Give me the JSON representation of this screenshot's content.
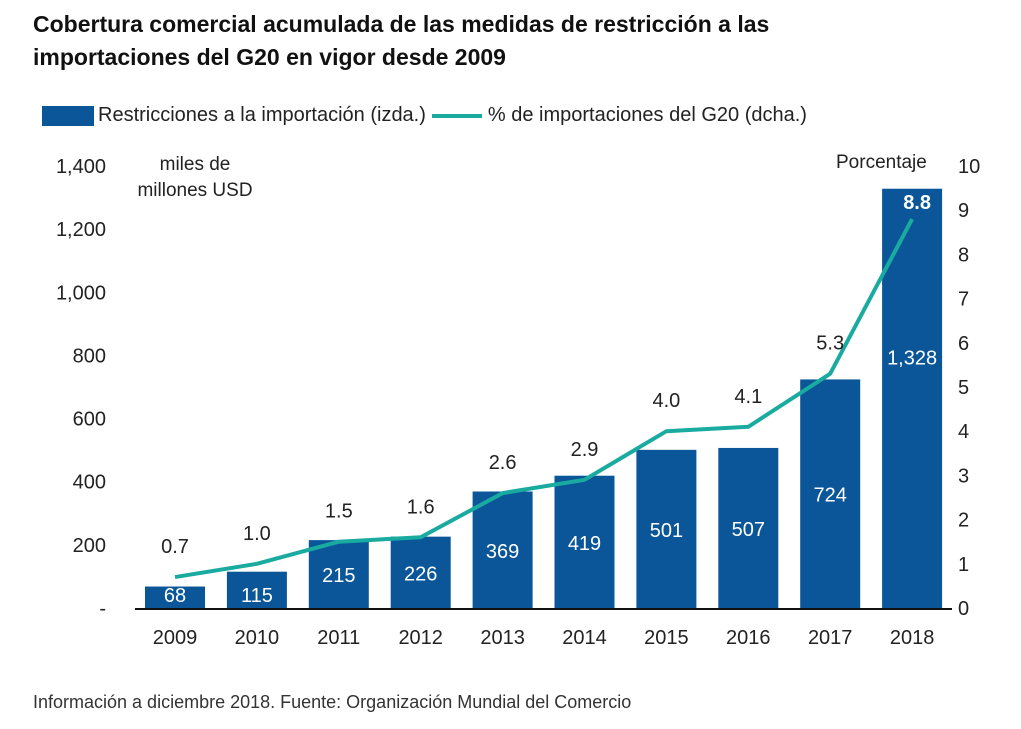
{
  "chart_data": {
    "type": "bar",
    "title": "Cobertura comercial acumulada de las medidas de restricción a las importaciones del G20 en vigor desde 2009",
    "categories": [
      "2009",
      "2010",
      "2011",
      "2012",
      "2013",
      "2014",
      "2015",
      "2016",
      "2017",
      "2018"
    ],
    "series": [
      {
        "name": "Restricciones a la importación (izda.)",
        "type": "bar",
        "axis": "left",
        "color": "#0a5699",
        "values": [
          68,
          115,
          215,
          226,
          369,
          419,
          501,
          507,
          724,
          1328
        ],
        "labels": [
          "68",
          "115",
          "215",
          "226",
          "369",
          "419",
          "501",
          "507",
          "724",
          "1,328"
        ]
      },
      {
        "name": "% de importaciones del G20 (dcha.)",
        "type": "line",
        "axis": "right",
        "color": "#1aaba0",
        "values": [
          0.7,
          1.0,
          1.5,
          1.6,
          2.6,
          2.9,
          4.0,
          4.1,
          5.3,
          8.8
        ],
        "labels": [
          "0.7",
          "1.0",
          "1.5",
          "1.6",
          "2.6",
          "2.9",
          "4.0",
          "4.1",
          "5.3",
          "8.8"
        ]
      }
    ],
    "left_axis": {
      "label": "miles de millones USD",
      "range": [
        0,
        1400
      ],
      "ticks": [
        0,
        200,
        400,
        600,
        800,
        1000,
        1200,
        1400
      ],
      "tick_labels": [
        "-",
        "200",
        "400",
        "600",
        "800",
        "1,000",
        "1,200",
        "1,400"
      ]
    },
    "right_axis": {
      "label": "Porcentaje",
      "range": [
        0,
        10
      ],
      "ticks": [
        0,
        1,
        2,
        3,
        4,
        5,
        6,
        7,
        8,
        9,
        10
      ],
      "tick_labels": [
        "0",
        "1",
        "2",
        "3",
        "4",
        "5",
        "6",
        "7",
        "8",
        "9",
        "10"
      ]
    },
    "grid": false,
    "legend_position": "top-left"
  },
  "title_line1": "Cobertura comercial acumulada de las medidas de restricción a las",
  "title_line2": "importaciones del G20 en vigor desde 2009",
  "legend": {
    "bar_label": "Restricciones a la importación (izda.)",
    "line_label": "% de importaciones del G20 (dcha.)"
  },
  "unit_left_line1": "miles de",
  "unit_left_line2": "millones USD",
  "unit_right": "Porcentaje",
  "footer": "Información a diciembre 2018. Fuente: Organización Mundial del Comercio"
}
